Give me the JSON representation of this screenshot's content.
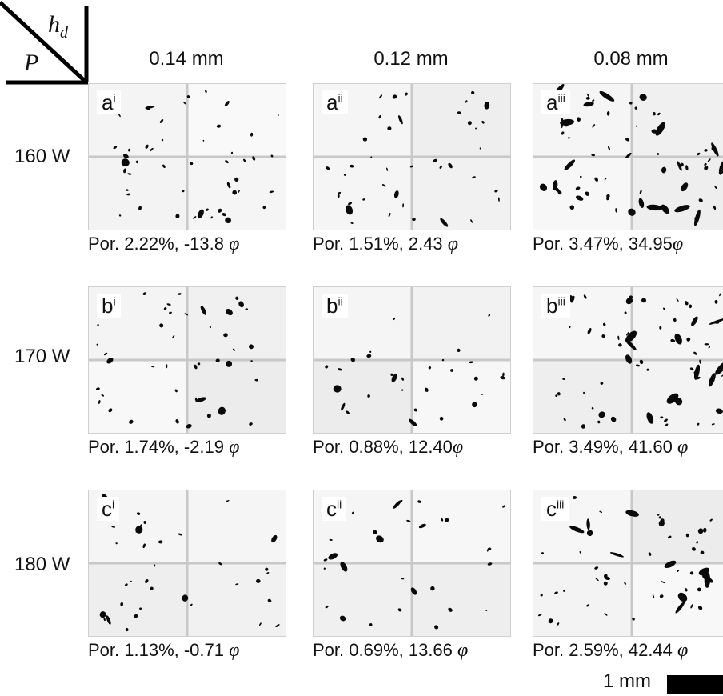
{
  "corner": {
    "top_symbol": "h",
    "top_subscript": "d",
    "left_symbol": "P"
  },
  "columns": [
    {
      "label": "0.14 mm",
      "suffix": "i"
    },
    {
      "label": "0.12 mm",
      "suffix": "ii"
    },
    {
      "label": "0.08 mm",
      "suffix": "iii"
    }
  ],
  "rows": [
    {
      "label": "160 W",
      "letter": "a"
    },
    {
      "label": "170 W",
      "letter": "b"
    },
    {
      "label": "180 W",
      "letter": "c"
    }
  ],
  "panels": [
    [
      {
        "letter": "a",
        "sup": "i",
        "caption": "Por. 2.22%, -13.8",
        "porosity_pct": 2.22,
        "phi": -13.8
      },
      {
        "letter": "a",
        "sup": "ii",
        "caption": "Por. 1.51%, 2.43",
        "porosity_pct": 1.51,
        "phi": 2.43
      },
      {
        "letter": "a",
        "sup": "iii",
        "caption": "Por. 3.47%, 34.95",
        "porosity_pct": 3.47,
        "phi": 34.95
      }
    ],
    [
      {
        "letter": "b",
        "sup": "i",
        "caption": "Por. 1.74%, -2.19",
        "porosity_pct": 1.74,
        "phi": -2.19
      },
      {
        "letter": "b",
        "sup": "ii",
        "caption": "Por. 0.88%, 12.40",
        "porosity_pct": 0.88,
        "phi": 12.4
      },
      {
        "letter": "b",
        "sup": "iii",
        "caption": "Por. 3.49%, 41.60",
        "porosity_pct": 3.49,
        "phi": 41.6
      }
    ],
    [
      {
        "letter": "c",
        "sup": "i",
        "caption": "Por. 1.13%, -0.71",
        "porosity_pct": 1.13,
        "phi": -0.71
      },
      {
        "letter": "c",
        "sup": "ii",
        "caption": "Por. 0.69%, 13.66",
        "porosity_pct": 0.69,
        "phi": 13.66
      },
      {
        "letter": "c",
        "sup": "iii",
        "caption": "Por. 2.59%, 42.44",
        "porosity_pct": 2.59,
        "phi": 42.44
      }
    ]
  ],
  "phi_symbol": "φ",
  "scale_bar": {
    "label": "1 mm"
  }
}
